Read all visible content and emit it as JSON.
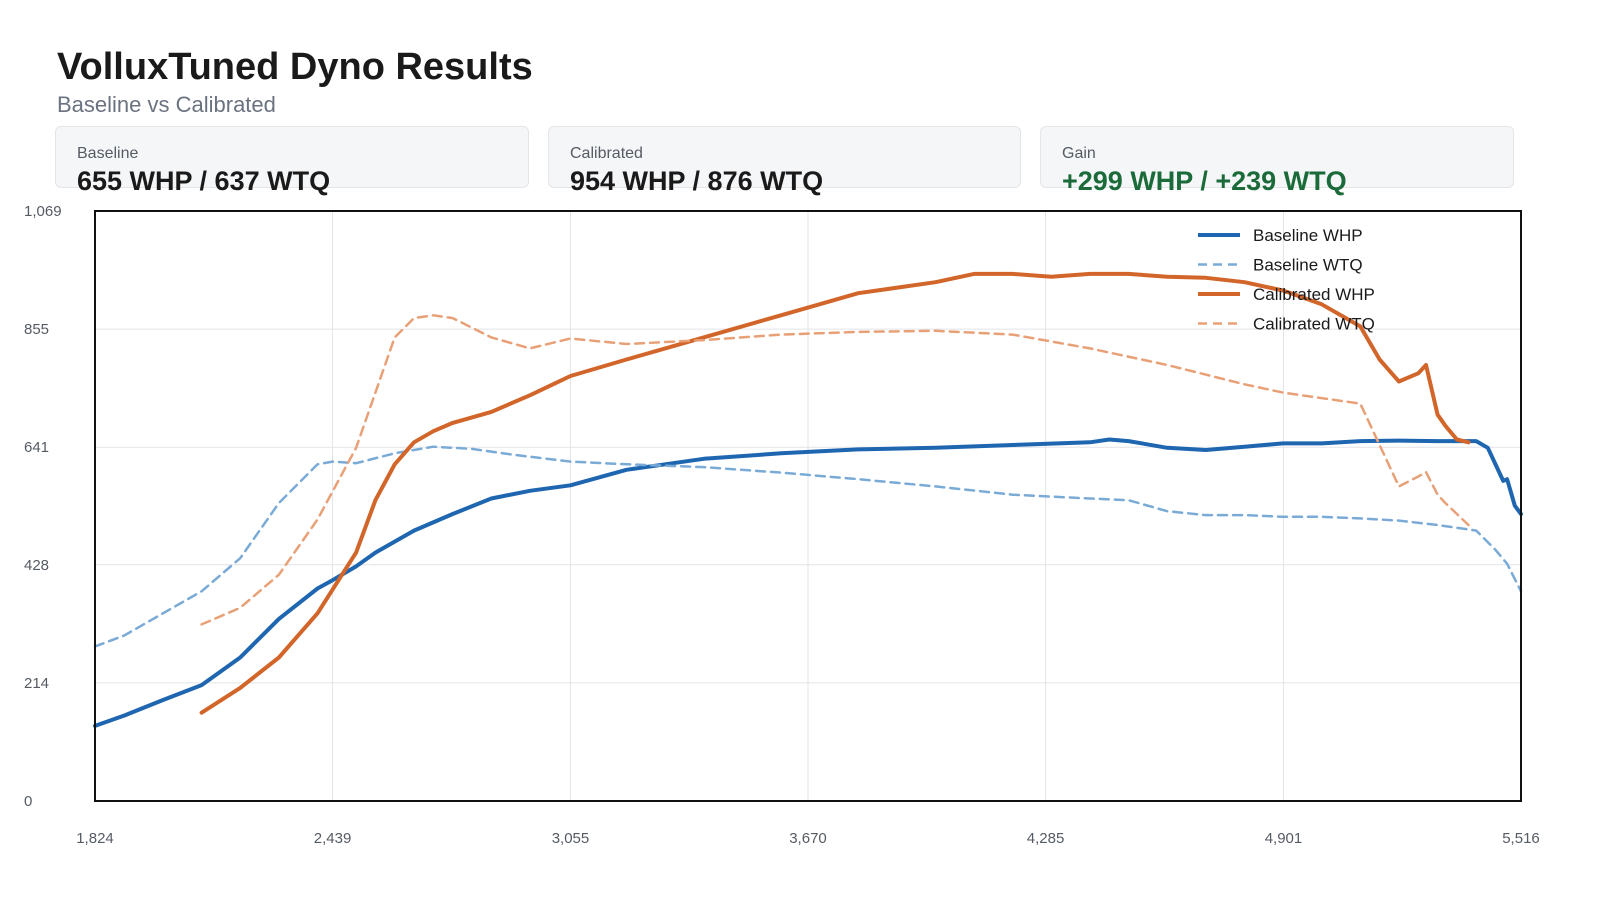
{
  "header": {
    "title": "VolluxTuned Dyno Results",
    "subtitle": "Baseline vs Calibrated"
  },
  "cards": [
    {
      "label": "Baseline",
      "value": "655 WHP / 637 WTQ",
      "color": "#1a1a1a"
    },
    {
      "label": "Calibrated",
      "value": "954 WHP / 876 WTQ",
      "color": "#1a1a1a"
    },
    {
      "label": "Gain",
      "value": "+299 WHP / +239 WTQ",
      "color": "#1b6b3a"
    }
  ],
  "chart_data": {
    "type": "line",
    "title": "",
    "xlabel": "",
    "ylabel": "",
    "xlim": [
      1824,
      5516
    ],
    "ylim": [
      0,
      1069
    ],
    "x_ticks": [
      "1,824",
      "2,439",
      "3,055",
      "3,670",
      "4,285",
      "4,901",
      "5,516"
    ],
    "x_tick_values": [
      1824,
      2439,
      3055,
      3670,
      4285,
      4901,
      5516
    ],
    "y_ticks": [
      "0",
      "214",
      "428",
      "641",
      "855",
      "1,069"
    ],
    "y_tick_values": [
      0,
      214,
      428,
      641,
      855,
      1069
    ],
    "grid": true,
    "legend_position": "top-right",
    "series": [
      {
        "name": "Baseline WHP",
        "color": "#1f66b0",
        "style": "solid",
        "x": [
          1824,
          1900,
          2000,
          2100,
          2200,
          2300,
          2400,
          2439,
          2500,
          2550,
          2650,
          2750,
          2850,
          2950,
          3055,
          3200,
          3400,
          3600,
          3800,
          4000,
          4200,
          4400,
          4450,
          4500,
          4600,
          4700,
          4800,
          4900,
          5000,
          5100,
          5200,
          5300,
          5400,
          5430,
          5470,
          5480,
          5500,
          5516
        ],
        "y": [
          136,
          155,
          183,
          210,
          260,
          330,
          385,
          400,
          425,
          450,
          490,
          520,
          548,
          562,
          572,
          600,
          620,
          630,
          637,
          640,
          645,
          650,
          655,
          652,
          640,
          636,
          642,
          648,
          648,
          652,
          653,
          652,
          652,
          640,
          580,
          583,
          535,
          520
        ]
      },
      {
        "name": "Baseline WTQ",
        "color": "#7aaad6",
        "style": "dashed",
        "x": [
          1824,
          1900,
          2000,
          2100,
          2200,
          2300,
          2400,
          2439,
          2500,
          2600,
          2700,
          2800,
          2900,
          3055,
          3200,
          3400,
          3600,
          3800,
          4000,
          4200,
          4400,
          4500,
          4600,
          4700,
          4800,
          4900,
          5000,
          5100,
          5200,
          5300,
          5400,
          5450,
          5480,
          5516
        ],
        "y": [
          280,
          300,
          340,
          380,
          440,
          540,
          610,
          615,
          612,
          630,
          642,
          638,
          628,
          615,
          610,
          605,
          595,
          583,
          570,
          555,
          548,
          545,
          525,
          518,
          518,
          515,
          515,
          512,
          508,
          500,
          490,
          455,
          430,
          380
        ]
      },
      {
        "name": "Calibrated WHP",
        "color": "#d2662a",
        "style": "solid",
        "x": [
          2100,
          2200,
          2300,
          2400,
          2500,
          2550,
          2600,
          2650,
          2700,
          2750,
          2850,
          2950,
          3055,
          3200,
          3400,
          3600,
          3800,
          4000,
          4100,
          4200,
          4300,
          4400,
          4500,
          4600,
          4700,
          4800,
          4900,
          5000,
          5100,
          5150,
          5200,
          5250,
          5270,
          5300,
          5320,
          5350,
          5380
        ],
        "y": [
          160,
          205,
          260,
          340,
          450,
          545,
          610,
          650,
          670,
          685,
          705,
          735,
          770,
          800,
          840,
          880,
          920,
          940,
          955,
          955,
          950,
          955,
          955,
          950,
          948,
          940,
          925,
          900,
          860,
          800,
          760,
          775,
          790,
          700,
          680,
          655,
          650
        ]
      },
      {
        "name": "Calibrated WTQ",
        "color": "#e8a077",
        "style": "dashed",
        "x": [
          2100,
          2200,
          2300,
          2400,
          2500,
          2600,
          2650,
          2700,
          2750,
          2850,
          2950,
          3055,
          3200,
          3400,
          3600,
          3800,
          4000,
          4200,
          4400,
          4600,
          4800,
          4900,
          5000,
          5100,
          5200,
          5250,
          5270,
          5300,
          5320,
          5350,
          5380
        ],
        "y": [
          320,
          350,
          410,
          510,
          640,
          840,
          875,
          880,
          875,
          840,
          820,
          838,
          828,
          835,
          845,
          850,
          852,
          845,
          820,
          790,
          755,
          740,
          730,
          720,
          570,
          588,
          596,
          555,
          540,
          520,
          500
        ]
      }
    ]
  }
}
